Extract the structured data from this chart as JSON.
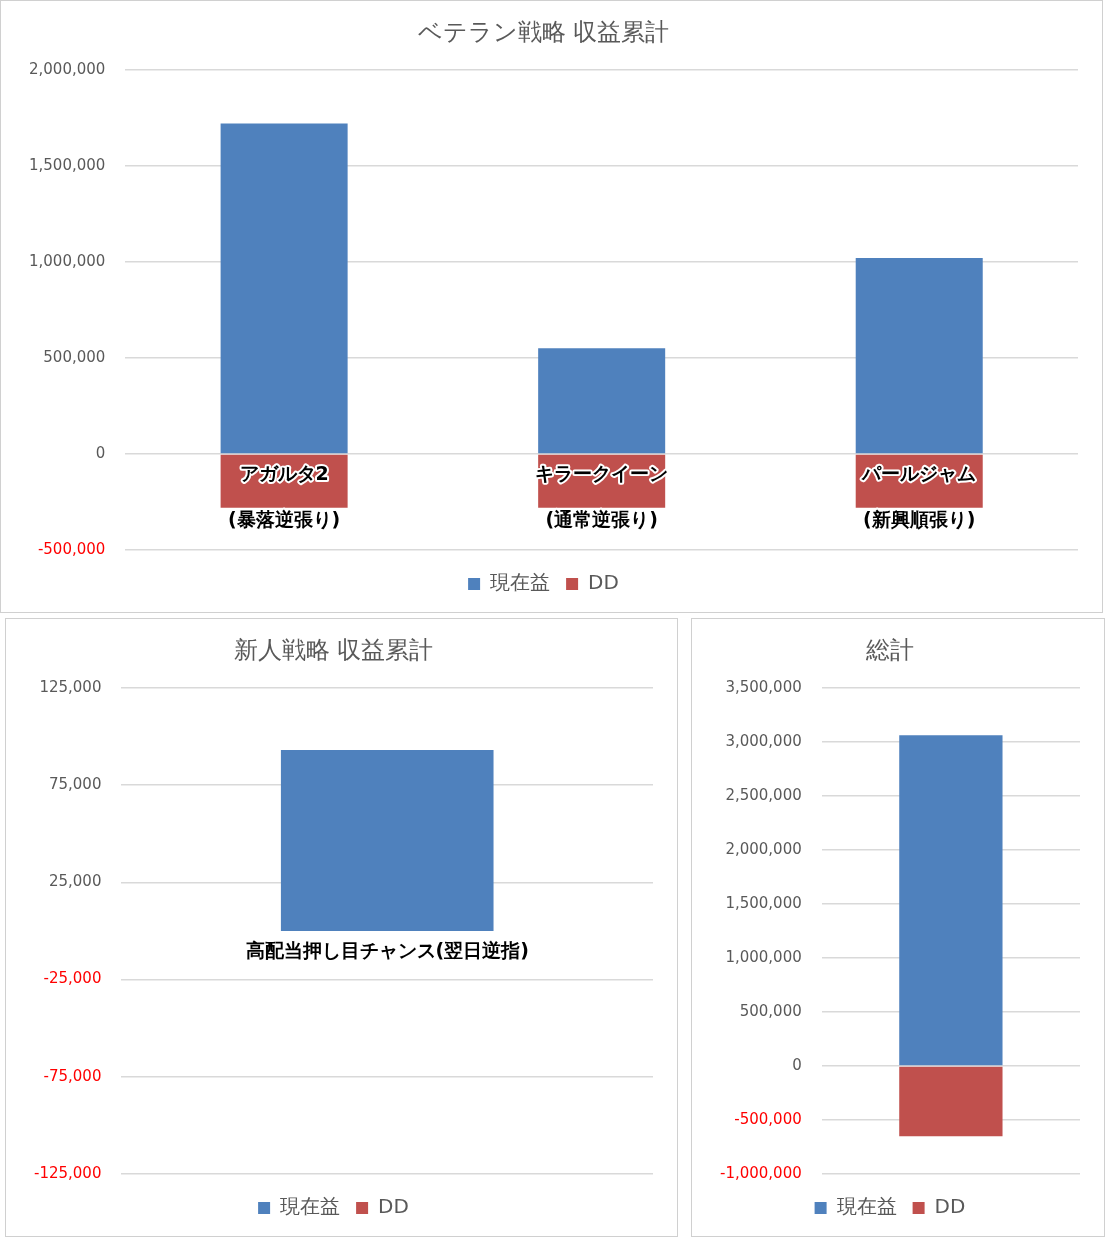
{
  "chart_data": [
    {
      "type": "bar",
      "title": "ベテラン戦略 収益累計",
      "categories": [
        "アガルタ2\n(暴落逆張り)",
        "キラークイーン\n(通常逆張り)",
        "パールジャム\n(新興順張り)"
      ],
      "stacked": true,
      "series": [
        {
          "name": "現在益",
          "color": "#4f81bd",
          "values": [
            1720000,
            550000,
            1020000
          ]
        },
        {
          "name": "DD",
          "color": "#c0504d",
          "values": [
            -280000,
            -280000,
            -280000
          ]
        }
      ],
      "ylim": [
        -500000,
        2000000
      ],
      "yticks": [
        {
          "value": -500000,
          "label": "-500,000"
        },
        0,
        {
          "value": 500000,
          "label": "500,000"
        },
        {
          "value": 1000000,
          "label": "1,000,000"
        },
        {
          "value": 1500000,
          "label": "1,500,000"
        },
        {
          "value": 2000000,
          "label": "2,000,000"
        }
      ],
      "grid": "y",
      "legend": "bottom"
    },
    {
      "type": "bar",
      "title": "新人戦略 収益累計",
      "categories": [
        "高配当押し目チャンス(翌日逆指)"
      ],
      "stacked": true,
      "series": [
        {
          "name": "現在益",
          "color": "#4f81bd",
          "values": [
            93000
          ]
        },
        {
          "name": "DD",
          "color": "#c0504d",
          "values": [
            0
          ]
        }
      ],
      "ylim": [
        -125000,
        125000
      ],
      "yticks": [
        {
          "value": -125000,
          "label": "-125,000"
        },
        {
          "value": -75000,
          "label": "-75,000"
        },
        {
          "value": -25000,
          "label": "-25,000"
        },
        {
          "value": 25000,
          "label": "25,000"
        },
        {
          "value": 75000,
          "label": "75,000"
        },
        {
          "value": 125000,
          "label": "125,000"
        }
      ],
      "grid": "y",
      "legend": "bottom"
    },
    {
      "type": "bar",
      "title": "総計",
      "categories": [
        null
      ],
      "stacked": true,
      "series": [
        {
          "name": "現在益",
          "color": "#4f81bd",
          "values": [
            3060000
          ]
        },
        {
          "name": "DD",
          "color": "#c0504d",
          "values": [
            -650000
          ]
        }
      ],
      "ylim": [
        -1000000,
        3500000
      ],
      "yticks": [
        {
          "value": -1000000,
          "label": "-1,000,000"
        },
        {
          "value": -500000,
          "label": "-500,000"
        },
        0,
        {
          "value": 500000,
          "label": "500,000"
        },
        {
          "value": 1000000,
          "label": "1,000,000"
        },
        {
          "value": 1500000,
          "label": "1,500,000"
        },
        {
          "value": 2000000,
          "label": "2,000,000"
        },
        {
          "value": 2500000,
          "label": "2,500,000"
        },
        {
          "value": 3000000,
          "label": "3,000,000"
        },
        {
          "value": 3500000,
          "label": "3,500,000"
        }
      ],
      "grid": "y",
      "legend": "bottom"
    }
  ]
}
